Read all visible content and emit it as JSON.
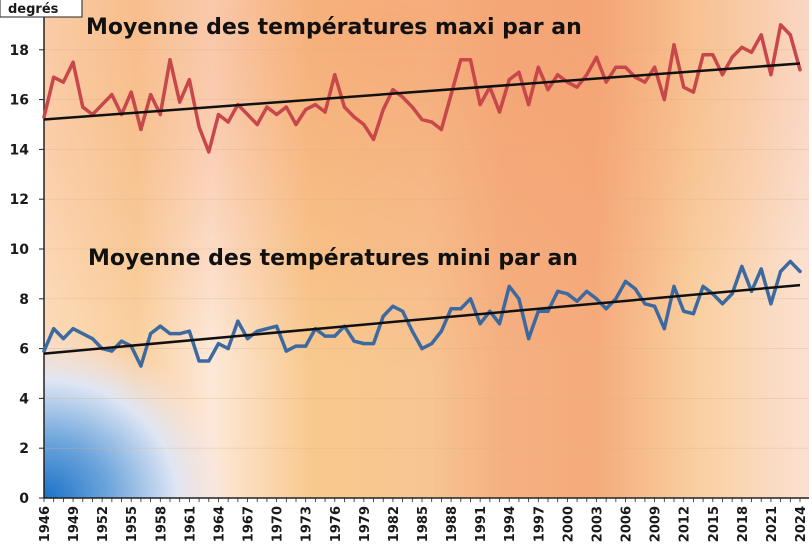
{
  "chart_data": {
    "type": "line",
    "title": "",
    "ylabel": "degrés",
    "xlabel": "",
    "ylim": [
      0,
      20
    ],
    "grid": true,
    "legend": "none",
    "x": [
      1946,
      1947,
      1948,
      1949,
      1950,
      1951,
      1952,
      1953,
      1954,
      1955,
      1956,
      1957,
      1958,
      1959,
      1960,
      1961,
      1962,
      1963,
      1964,
      1965,
      1966,
      1967,
      1968,
      1969,
      1970,
      1971,
      1972,
      1973,
      1974,
      1975,
      1976,
      1977,
      1978,
      1979,
      1980,
      1981,
      1982,
      1983,
      1984,
      1985,
      1986,
      1987,
      1988,
      1989,
      1990,
      1991,
      1992,
      1993,
      1994,
      1995,
      1996,
      1997,
      1998,
      1999,
      2000,
      2001,
      2002,
      2003,
      2004,
      2005,
      2006,
      2007,
      2008,
      2009,
      2010,
      2011,
      2012,
      2013,
      2014,
      2015,
      2016,
      2017,
      2018,
      2019,
      2020,
      2021,
      2022,
      2023,
      2024
    ],
    "x_ticks": [
      "1946",
      "1949",
      "1952",
      "1955",
      "1958",
      "1961",
      "1964",
      "1967",
      "1970",
      "1973",
      "1976",
      "1979",
      "1982",
      "1985",
      "1988",
      "1991",
      "1994",
      "1997",
      "2000",
      "2003",
      "2006",
      "2009",
      "2012",
      "2015",
      "2018",
      "2021",
      "2024"
    ],
    "y_ticks": [
      "0",
      "2",
      "4",
      "6",
      "8",
      "10",
      "12",
      "14",
      "16",
      "18"
    ],
    "series": [
      {
        "name": "Moyenne des températures maxi par an",
        "color": "#c8474a",
        "trend": [
          15.2,
          17.45
        ],
        "values": [
          15.3,
          16.9,
          16.7,
          17.5,
          15.7,
          15.4,
          15.8,
          16.2,
          15.4,
          16.3,
          14.8,
          16.2,
          15.4,
          17.6,
          15.9,
          16.8,
          14.9,
          13.9,
          15.4,
          15.1,
          15.8,
          15.4,
          15.0,
          15.7,
          15.4,
          15.7,
          15.0,
          15.6,
          15.8,
          15.5,
          17.0,
          15.7,
          15.3,
          15.0,
          14.4,
          15.6,
          16.4,
          16.1,
          15.7,
          15.2,
          15.1,
          14.8,
          16.2,
          17.6,
          17.6,
          15.8,
          16.5,
          15.5,
          16.8,
          17.1,
          15.8,
          17.3,
          16.4,
          17.0,
          16.7,
          16.5,
          17.0,
          17.7,
          16.7,
          17.3,
          17.3,
          16.9,
          16.7,
          17.3,
          16.0,
          18.2,
          16.5,
          16.3,
          17.8,
          17.8,
          17.0,
          17.7,
          18.1,
          17.9,
          18.6,
          17.0,
          19.0,
          18.6,
          17.2
        ]
      },
      {
        "name": "Moyenne des températures mini par an",
        "color": "#3c6aa0",
        "trend": [
          5.8,
          8.55
        ],
        "values": [
          5.9,
          6.8,
          6.4,
          6.8,
          6.6,
          6.4,
          6.0,
          5.9,
          6.3,
          6.1,
          5.3,
          6.6,
          6.9,
          6.6,
          6.6,
          6.7,
          5.5,
          5.5,
          6.2,
          6.0,
          7.1,
          6.4,
          6.7,
          6.8,
          6.9,
          5.9,
          6.1,
          6.1,
          6.8,
          6.5,
          6.5,
          6.9,
          6.3,
          6.2,
          6.2,
          7.3,
          7.7,
          7.5,
          6.7,
          6.0,
          6.2,
          6.7,
          7.6,
          7.6,
          8.0,
          7.0,
          7.5,
          7.0,
          8.5,
          8.0,
          6.4,
          7.5,
          7.5,
          8.3,
          8.2,
          7.9,
          8.3,
          8.0,
          7.6,
          8.0,
          8.7,
          8.4,
          7.8,
          7.7,
          6.8,
          8.5,
          7.5,
          7.4,
          8.5,
          8.2,
          7.8,
          8.2,
          9.3,
          8.3,
          9.2,
          7.8,
          9.1,
          9.5,
          9.1
        ]
      }
    ]
  }
}
